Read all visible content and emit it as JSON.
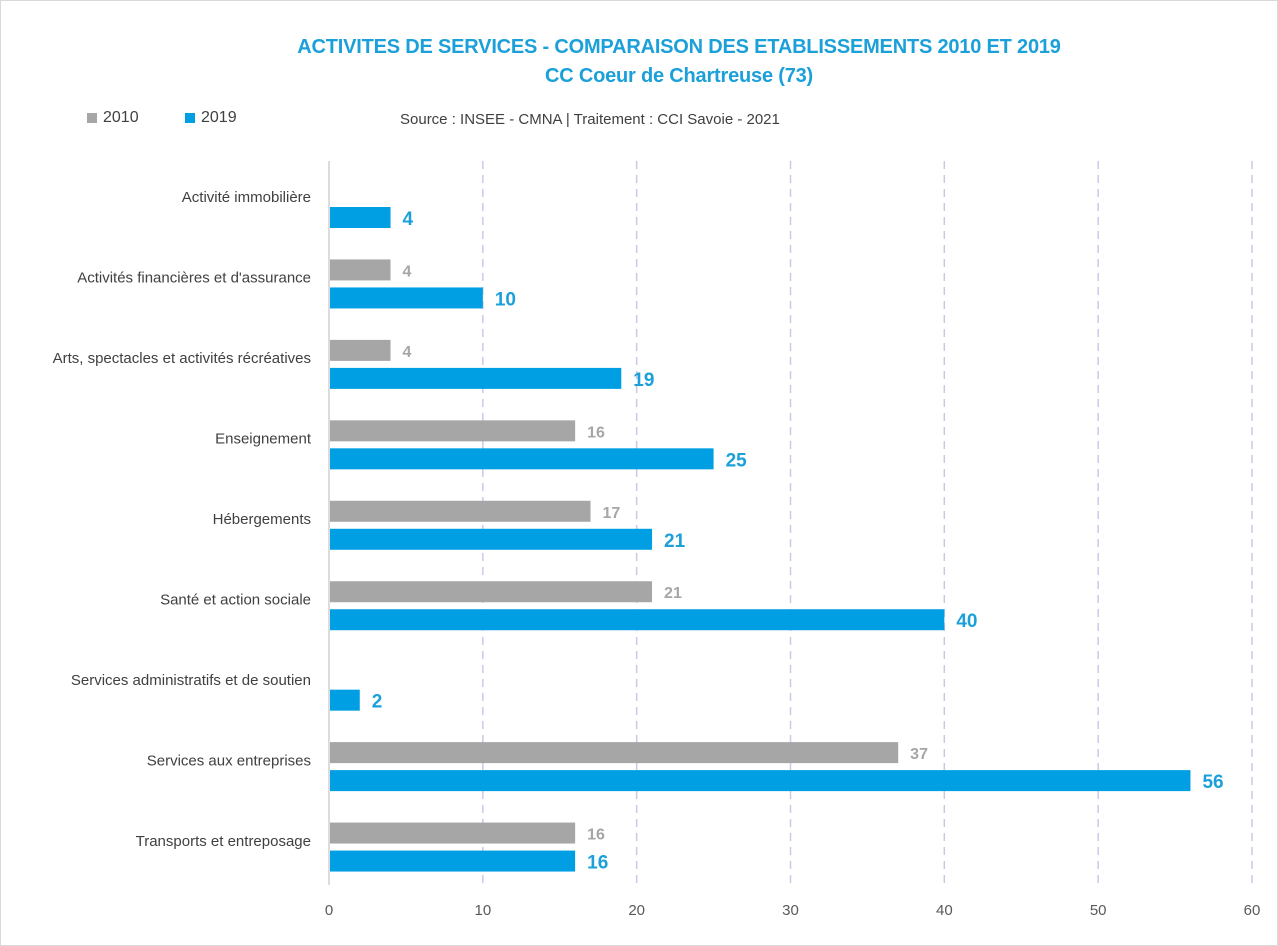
{
  "chart_data": {
    "type": "bar",
    "orientation": "horizontal",
    "title": "ACTIVITES DE SERVICES - COMPARAISON DES ETABLISSEMENTS 2010 ET 2019",
    "subtitle": "CC Coeur de Chartreuse (73)",
    "source": "Source : INSEE - CMNA  |  Traitement : CCI Savoie - 2021",
    "categories": [
      "Activité immobilière",
      "Activités financières et d'assurance",
      "Arts, spectacles et activités récréatives",
      "Enseignement",
      "Hébergements",
      "Santé et action sociale",
      "Services administratifs et de soutien",
      "Services aux entreprises",
      "Transports et entreposage"
    ],
    "series": [
      {
        "name": "2010",
        "color": "#a6a6a6",
        "values": [
          null,
          4,
          4,
          16,
          17,
          21,
          null,
          37,
          16
        ]
      },
      {
        "name": "2019",
        "color": "#009fe3",
        "values": [
          4,
          10,
          19,
          25,
          21,
          40,
          2,
          56,
          16
        ]
      }
    ],
    "xlim": [
      0,
      60
    ],
    "xticks": [
      "0",
      "10",
      "20",
      "30",
      "40",
      "50",
      "60"
    ],
    "grid": true,
    "legend": "top-left"
  }
}
